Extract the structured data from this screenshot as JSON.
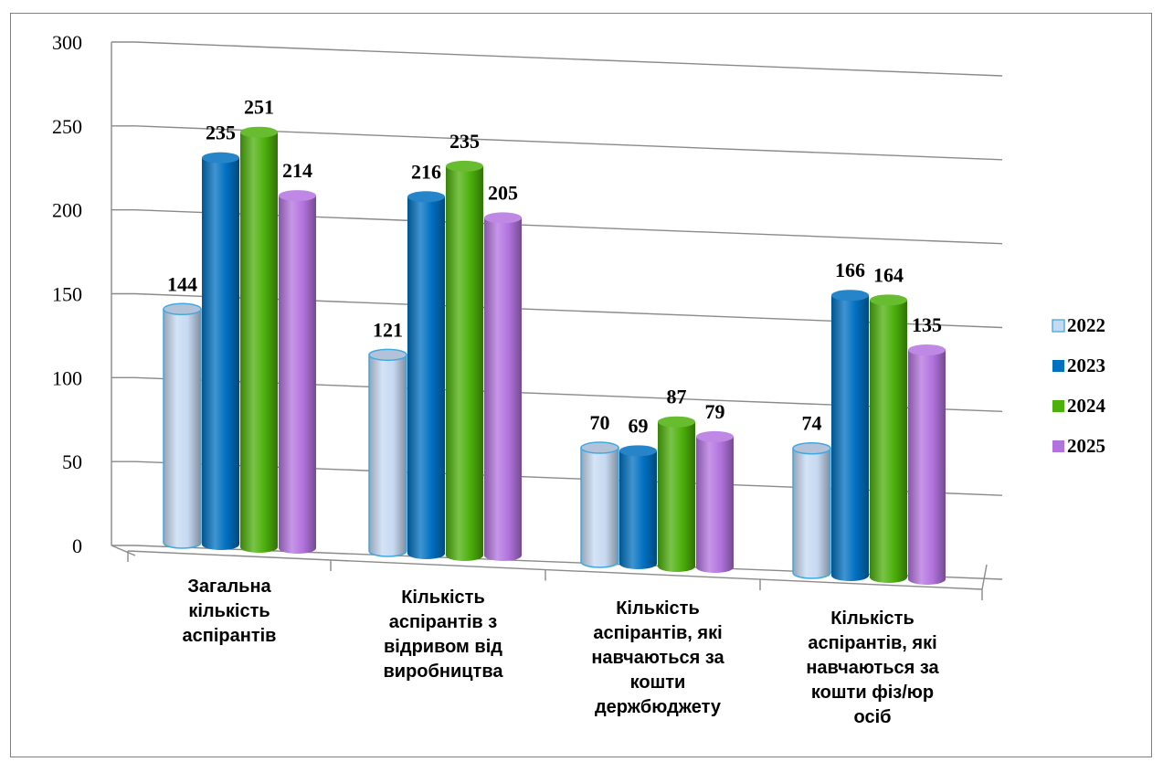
{
  "chart_data": {
    "type": "bar",
    "categories": [
      [
        "Загальна",
        "кількість",
        "аспірантів"
      ],
      [
        "Кількість",
        "аспірантів з",
        "відривом від",
        "виробництва"
      ],
      [
        "Кількість",
        "аспірантів, які",
        "навчаються за",
        "кошти",
        "держбюджету"
      ],
      [
        "Кількість",
        "аспірантів, які",
        "навчаються за",
        "кошти фіз/юр",
        "осіб"
      ]
    ],
    "series": [
      {
        "name": "2022",
        "values": [
          144,
          121,
          70,
          74
        ],
        "color": "#c6d9f1"
      },
      {
        "name": "2023",
        "values": [
          235,
          216,
          69,
          166
        ],
        "color": "#0070c0"
      },
      {
        "name": "2024",
        "values": [
          251,
          235,
          87,
          164
        ],
        "color": "#4cb00b"
      },
      {
        "name": "2025",
        "values": [
          214,
          205,
          79,
          135
        ],
        "color": "#b373df"
      }
    ],
    "y_ticks": [
      "0",
      "50",
      "100",
      "150",
      "200",
      "250",
      "300"
    ],
    "ylim": [
      0,
      300
    ],
    "grid": true,
    "legend_position": "right"
  }
}
